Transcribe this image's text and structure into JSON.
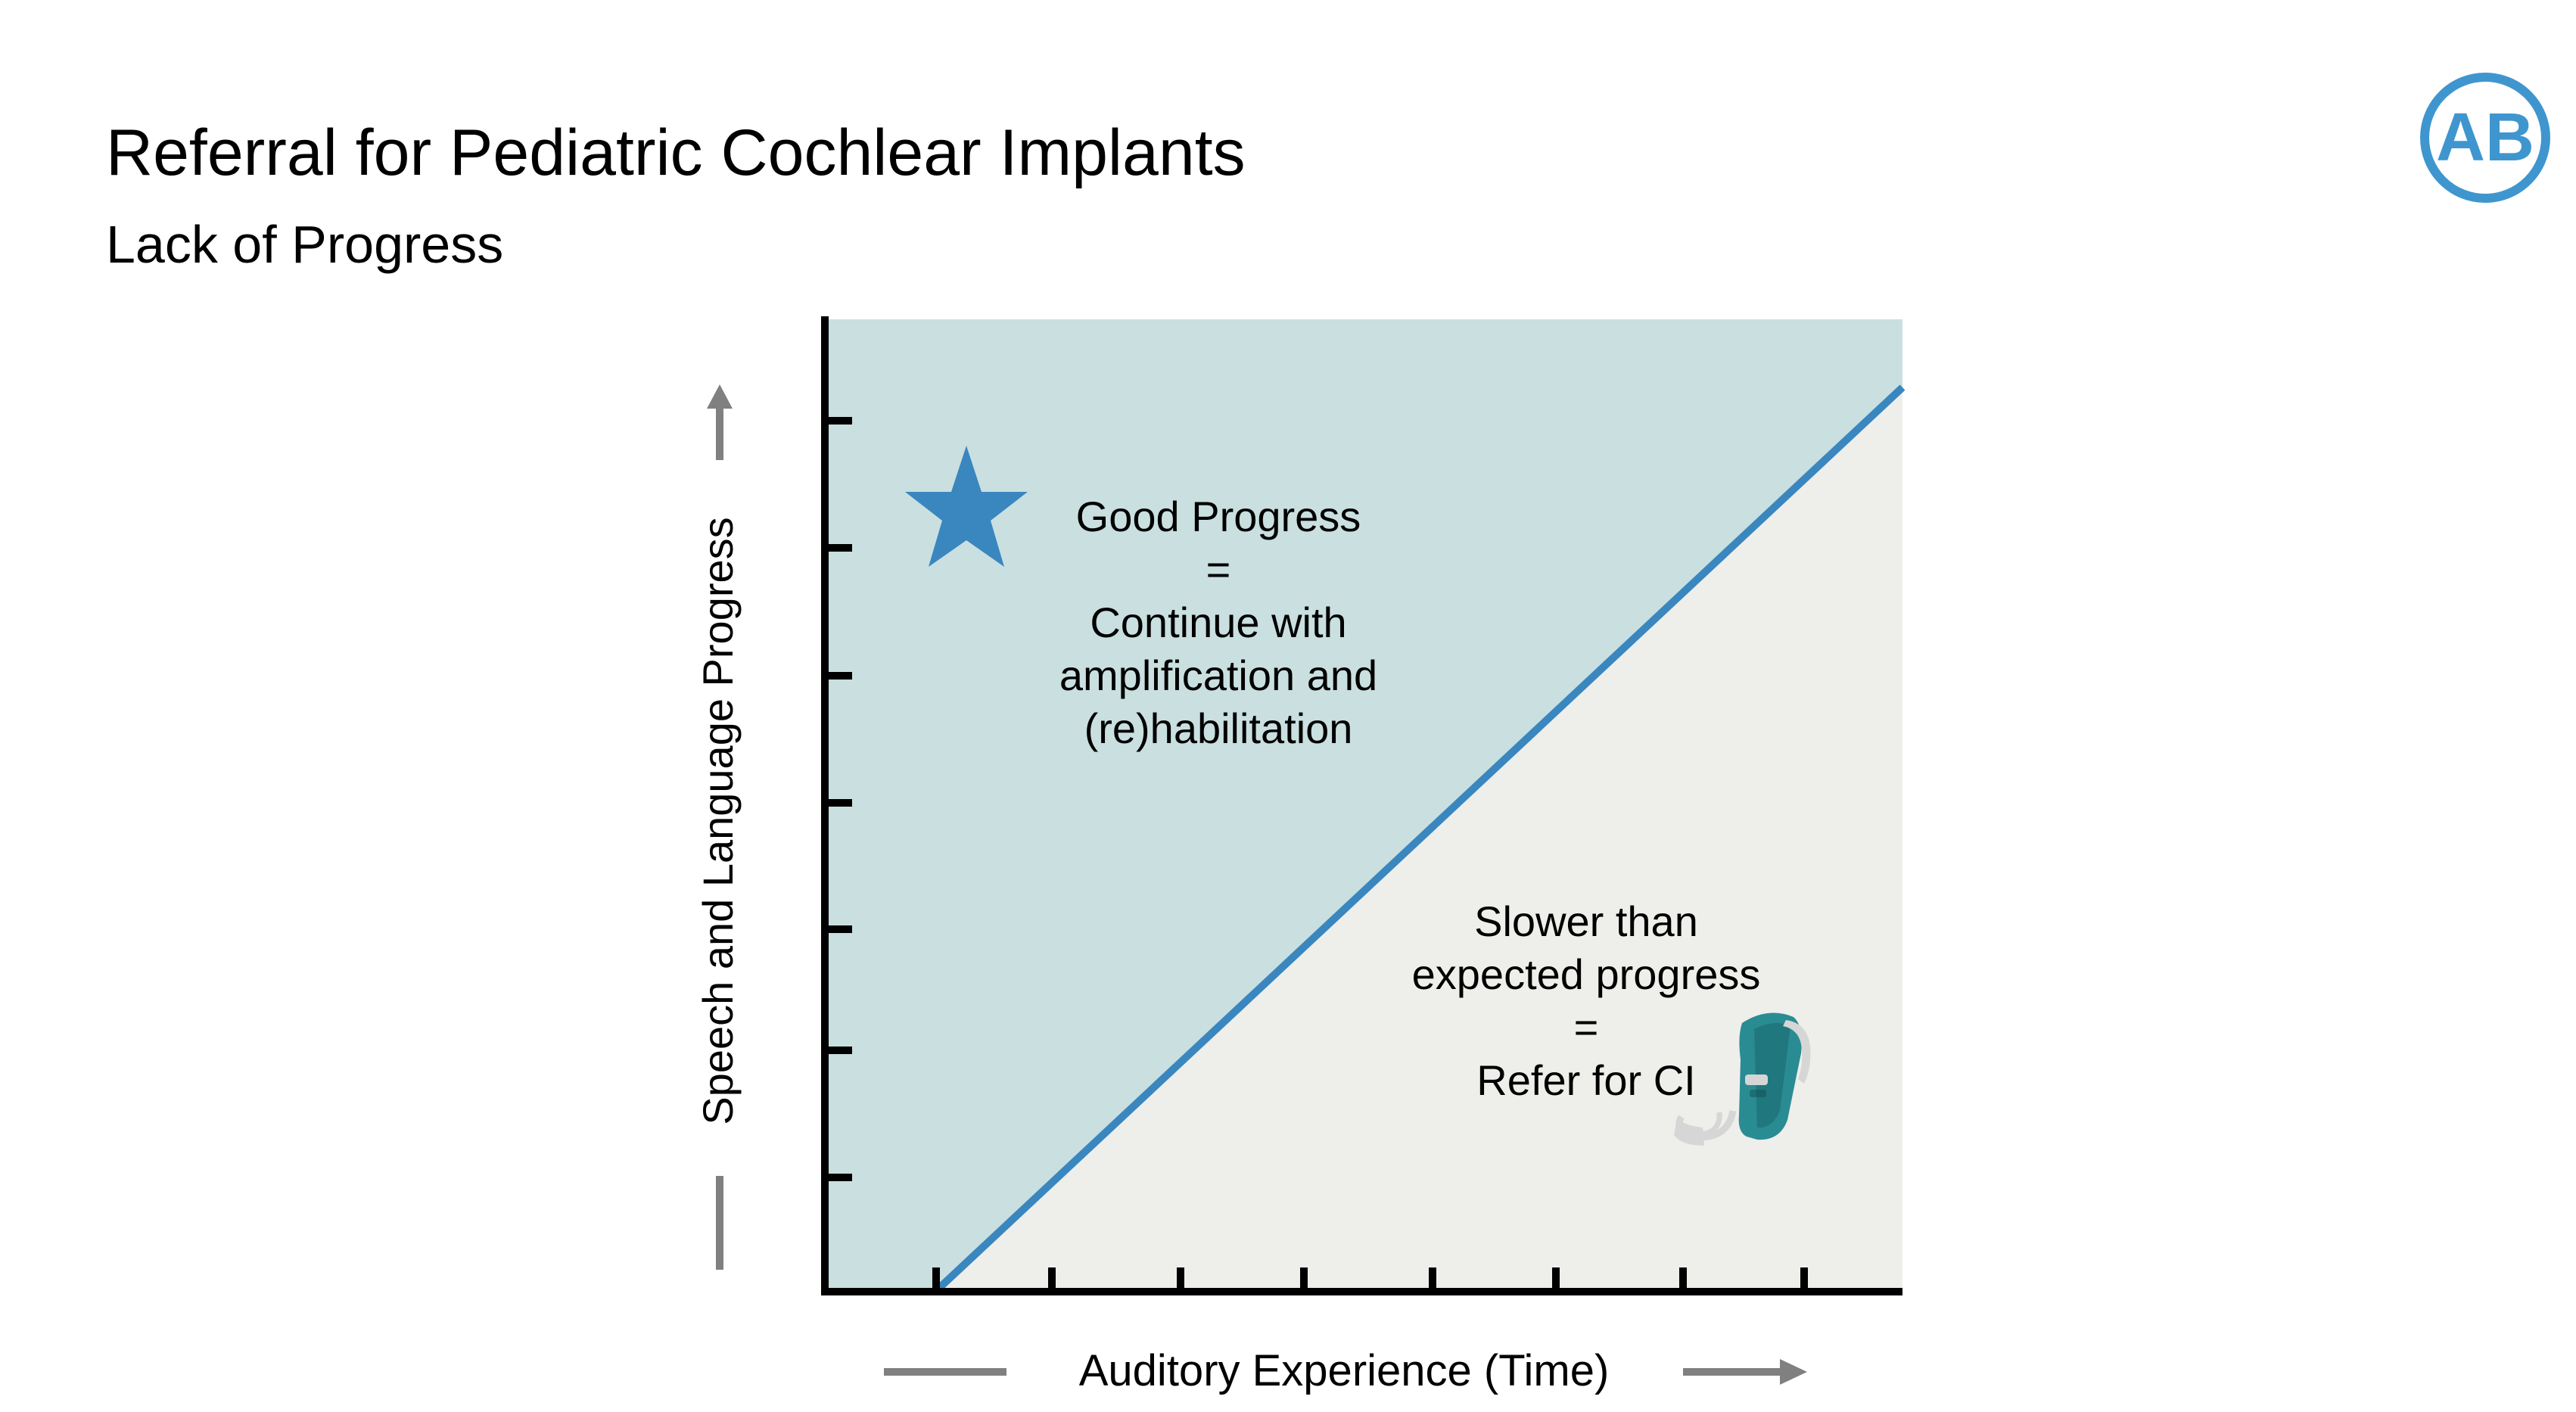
{
  "slide": {
    "title": "Referral for Pediatric Cochlear Implants",
    "subtitle": "Lack of Progress"
  },
  "logo": {
    "text": "AB",
    "icon": "ab-logo-icon",
    "color": "#3f96cf"
  },
  "diagram": {
    "y_axis_label": "Speech and Language Progress",
    "x_axis_label": "Auditory Experience (Time)",
    "good_zone": {
      "lines": [
        "Good Progress",
        "=",
        "Continue with",
        "amplification and",
        "(re)habilitation"
      ],
      "icon": "star-icon"
    },
    "slow_zone": {
      "lines": [
        "Slower than",
        "expected progress",
        "=",
        "Refer for CI"
      ],
      "icon": "hearing-aid-icon"
    },
    "colors": {
      "good_zone_fill": "#c9dfe0",
      "slow_zone_fill": "#eeeeeb",
      "divider_line": "#3a86bf",
      "star": "#3a86bf",
      "axis": "#000000",
      "arrow": "#808080",
      "hearing_aid_body": "#2a8c93",
      "hearing_aid_accent": "#d6d6d6"
    }
  }
}
